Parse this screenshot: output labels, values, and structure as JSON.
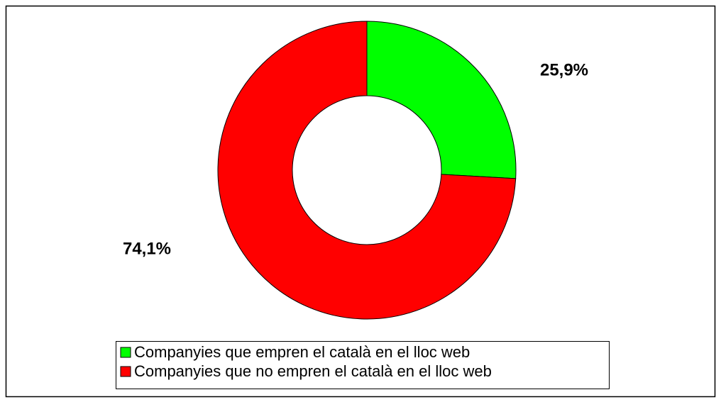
{
  "chart_data": {
    "type": "donut",
    "categories": [
      "Companyies que empren el català en el lloc web",
      "Companyies que no empren el català en el lloc web"
    ],
    "values": [
      25.9,
      74.1
    ],
    "value_labels": [
      "25,9%",
      "74,1%"
    ],
    "colors": [
      "#00ff00",
      "#ff0000"
    ]
  }
}
